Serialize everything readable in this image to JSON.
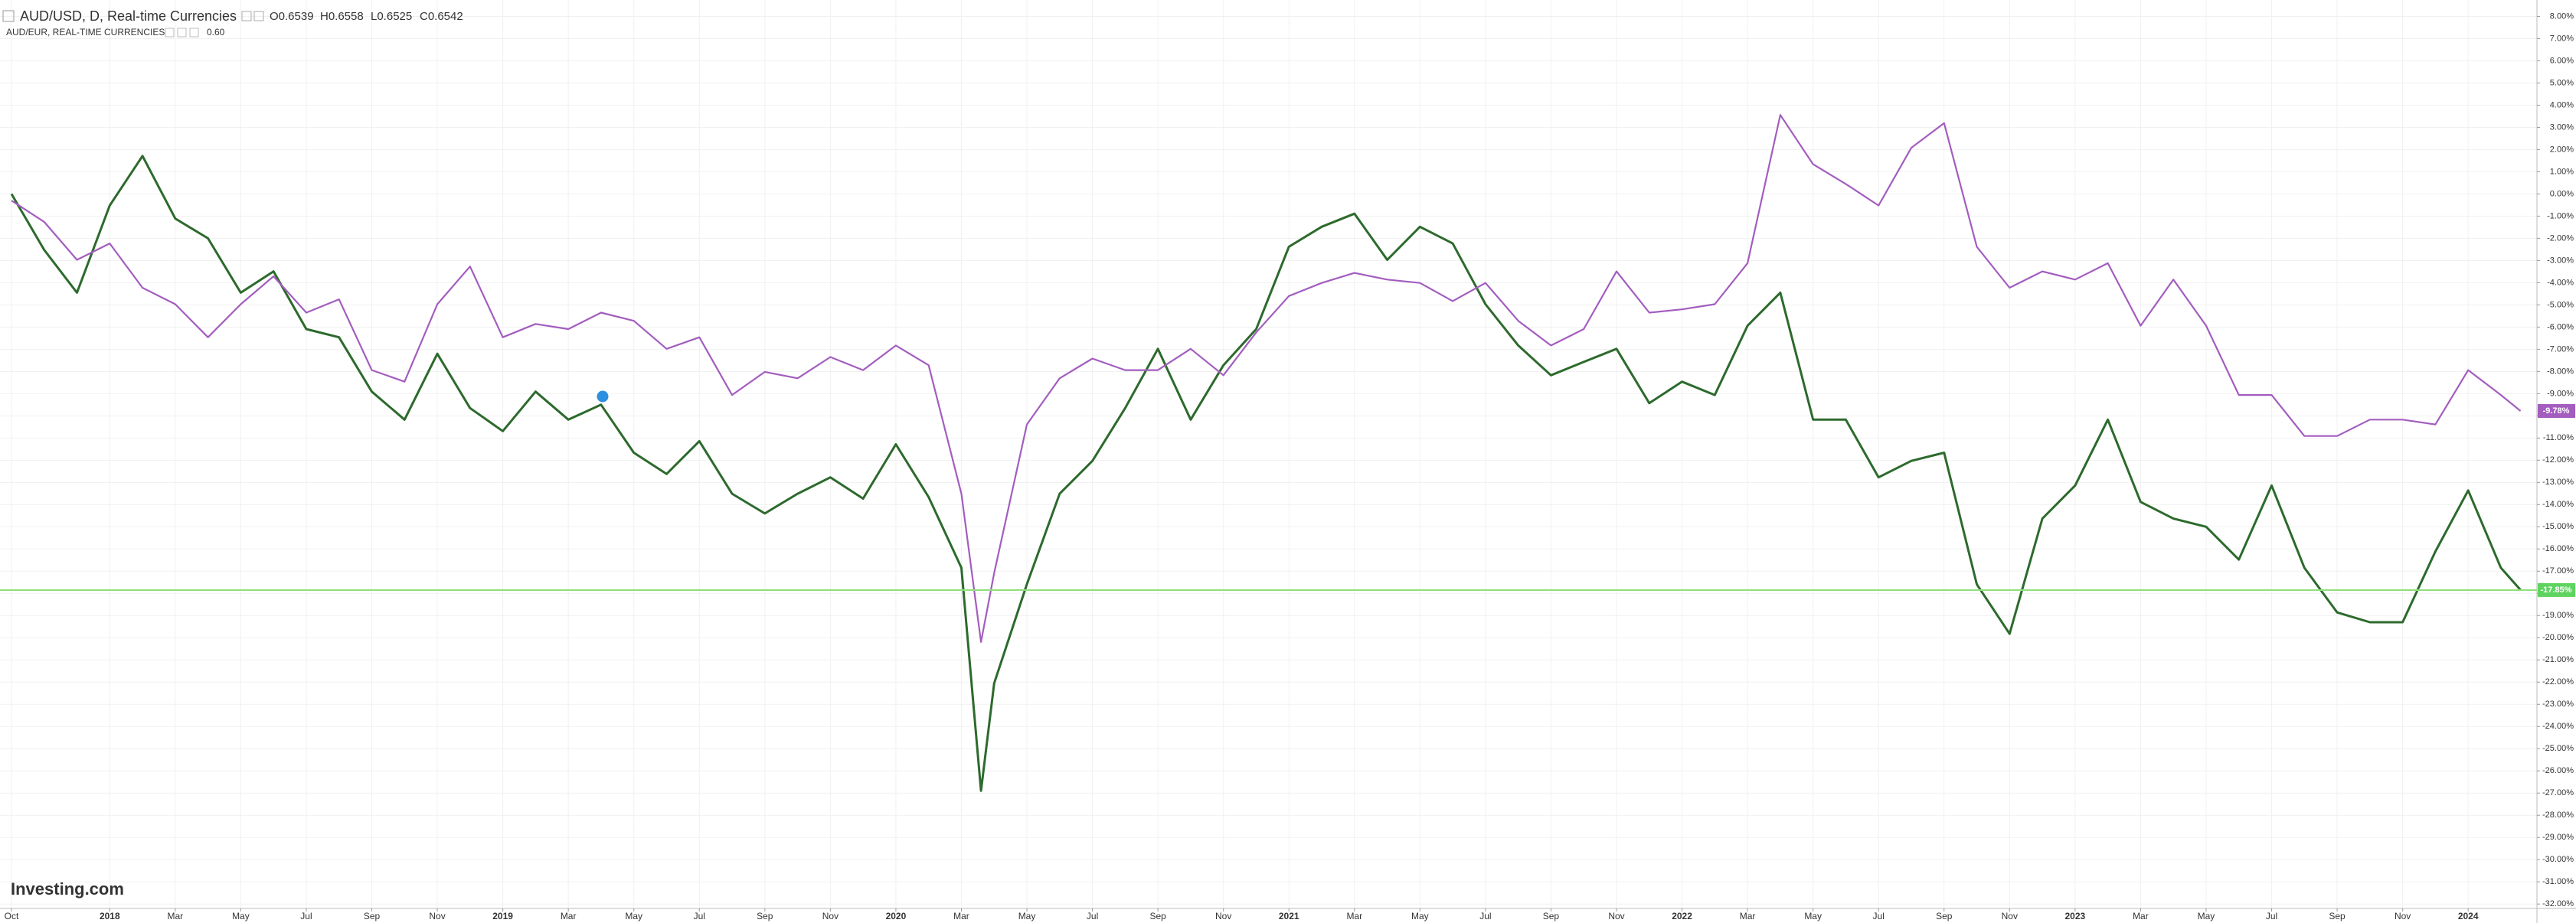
{
  "chart_data": {
    "type": "line",
    "title": "AUD/USD, D, Real-time Currencies",
    "ohlc": [
      "O0.6539",
      "H0.6558",
      "L0.6525",
      "C0.6542"
    ],
    "logo": "Investing.com",
    "x": [
      0,
      1,
      2,
      3,
      4,
      5,
      6,
      7,
      8,
      9,
      10,
      11,
      12,
      13,
      14,
      15,
      16,
      17,
      18,
      19,
      20,
      21,
      22,
      23,
      24,
      25,
      26,
      27,
      28,
      29,
      29.6,
      30,
      31,
      32,
      33,
      34,
      35,
      36,
      37,
      38,
      39,
      40,
      41,
      42,
      43,
      44,
      45,
      46,
      47,
      48,
      49,
      50,
      51,
      52,
      53,
      54,
      55,
      56,
      57,
      58,
      59,
      60,
      61,
      62,
      63,
      64,
      65,
      66,
      67,
      68,
      69,
      70,
      71,
      72,
      73,
      74,
      75,
      76,
      76.6
    ],
    "series": [
      {
        "name": "AUD/USD, D, Real-time Currencies",
        "color": "#2d6a2d",
        "last_label": "-17.85%",
        "values": [
          0,
          -2.52,
          -4.45,
          -0.52,
          1.71,
          -1.11,
          -2.0,
          -4.45,
          -3.49,
          -6.09,
          -6.46,
          -8.91,
          -10.17,
          -7.2,
          -9.65,
          -10.69,
          -8.91,
          -10.17,
          -9.5,
          -11.66,
          -12.62,
          -11.14,
          -13.51,
          -14.4,
          -13.51,
          -12.77,
          -13.73,
          -11.28,
          -13.66,
          -16.85,
          -26.9,
          -22.05,
          -17.59,
          -13.51,
          -12.03,
          -9.65,
          -6.98,
          -10.17,
          -7.72,
          -6.09,
          -2.38,
          -1.48,
          -0.89,
          -2.97,
          -1.48,
          -2.23,
          -4.97,
          -6.83,
          -8.17,
          -7.57,
          -6.98,
          -9.43,
          -8.46,
          -9.06,
          -5.94,
          -4.45,
          -10.17,
          -10.17,
          -12.77,
          -12.03,
          -11.66,
          -17.59,
          -19.82,
          -14.63,
          -13.14,
          -10.17,
          -13.88,
          -14.63,
          -15.0,
          -16.48,
          -13.14,
          -16.85,
          -18.86,
          -19.3,
          -19.3,
          -16.11,
          -13.36,
          -16.85,
          -17.85
        ]
      },
      {
        "name": "AUD/EUR, REAL-TIME CURRENCIES",
        "color": "#a35dbf",
        "legend_value": "0.60",
        "last_label": "-9.78%",
        "values": [
          -0.3,
          -1.26,
          -2.97,
          -2.23,
          -4.23,
          -4.97,
          -6.46,
          -4.97,
          -3.71,
          -5.35,
          -4.75,
          -7.94,
          -8.46,
          -4.97,
          -3.27,
          -6.46,
          -5.86,
          -6.09,
          -5.35,
          -5.72,
          -6.98,
          -6.46,
          -9.06,
          -8.02,
          -8.31,
          -7.35,
          -7.94,
          -6.83,
          -7.72,
          -13.51,
          -20.19,
          -17.08,
          -10.39,
          -8.31,
          -7.42,
          -7.94,
          -7.94,
          -6.98,
          -8.17,
          -6.24,
          -4.6,
          -4.01,
          -3.56,
          -3.86,
          -4.01,
          -4.83,
          -4.01,
          -5.72,
          -6.83,
          -6.09,
          -3.49,
          -5.35,
          -5.2,
          -4.97,
          -3.12,
          3.56,
          1.34,
          0.45,
          -0.52,
          2.08,
          3.19,
          -2.38,
          -4.23,
          -3.49,
          -3.86,
          -3.12,
          -5.94,
          -3.86,
          -5.94,
          -9.06,
          -9.06,
          -10.91,
          -10.91,
          -10.17,
          -10.17,
          -10.39,
          -7.94,
          -9.06,
          -9.78
        ]
      }
    ],
    "xlim": [
      -0.35,
      77.1
    ],
    "xticks": [
      {
        "value": 0,
        "label": "Oct"
      },
      {
        "value": 3,
        "label": "2018"
      },
      {
        "value": 5,
        "label": "Mar"
      },
      {
        "value": 7,
        "label": "May"
      },
      {
        "value": 9,
        "label": "Jul"
      },
      {
        "value": 11,
        "label": "Sep"
      },
      {
        "value": 13,
        "label": "Nov"
      },
      {
        "value": 15,
        "label": "2019"
      },
      {
        "value": 17,
        "label": "Mar"
      },
      {
        "value": 19,
        "label": "May"
      },
      {
        "value": 21,
        "label": "Jul"
      },
      {
        "value": 23,
        "label": "Sep"
      },
      {
        "value": 25,
        "label": "Nov"
      },
      {
        "value": 27,
        "label": "2020"
      },
      {
        "value": 29,
        "label": "Mar"
      },
      {
        "value": 31,
        "label": "May"
      },
      {
        "value": 33,
        "label": "Jul"
      },
      {
        "value": 35,
        "label": "Sep"
      },
      {
        "value": 37,
        "label": "Nov"
      },
      {
        "value": 39,
        "label": "2021"
      },
      {
        "value": 41,
        "label": "Mar"
      },
      {
        "value": 43,
        "label": "May"
      },
      {
        "value": 45,
        "label": "Jul"
      },
      {
        "value": 47,
        "label": "Sep"
      },
      {
        "value": 49,
        "label": "Nov"
      },
      {
        "value": 51,
        "label": "2022"
      },
      {
        "value": 53,
        "label": "Mar"
      },
      {
        "value": 55,
        "label": "May"
      },
      {
        "value": 57,
        "label": "Jul"
      },
      {
        "value": 59,
        "label": "Sep"
      },
      {
        "value": 61,
        "label": "Nov"
      },
      {
        "value": 63,
        "label": "2023"
      },
      {
        "value": 65,
        "label": "Mar"
      },
      {
        "value": 67,
        "label": "May"
      },
      {
        "value": 69,
        "label": "Jul"
      },
      {
        "value": 71,
        "label": "Sep"
      },
      {
        "value": 73,
        "label": "Nov"
      },
      {
        "value": 75,
        "label": "2024"
      }
    ],
    "ylim": [
      -32.2,
      8.74
    ],
    "yticks": [
      {
        "value": 8,
        "label": "8.00%"
      },
      {
        "value": 7,
        "label": "7.00%"
      },
      {
        "value": 6,
        "label": "6.00%"
      },
      {
        "value": 5,
        "label": "5.00%"
      },
      {
        "value": 4,
        "label": "4.00%"
      },
      {
        "value": 3,
        "label": "3.00%"
      },
      {
        "value": 2,
        "label": "2.00%"
      },
      {
        "value": 1,
        "label": "1.00%"
      },
      {
        "value": 0,
        "label": "0.00%"
      },
      {
        "value": -1,
        "label": "-1.00%"
      },
      {
        "value": -2,
        "label": "-2.00%"
      },
      {
        "value": -3,
        "label": "-3.00%"
      },
      {
        "value": -4,
        "label": "-4.00%"
      },
      {
        "value": -5,
        "label": "-5.00%"
      },
      {
        "value": -6,
        "label": "-6.00%"
      },
      {
        "value": -7,
        "label": "-7.00%"
      },
      {
        "value": -8,
        "label": "-8.00%"
      },
      {
        "value": -9,
        "label": "-9.00%"
      },
      {
        "value": -10,
        "label": "-10.00%"
      },
      {
        "value": -11,
        "label": "-11.00%"
      },
      {
        "value": -12,
        "label": "-12.00%"
      },
      {
        "value": -13,
        "label": "-13.00%"
      },
      {
        "value": -14,
        "label": "-14.00%"
      },
      {
        "value": -15,
        "label": "-15.00%"
      },
      {
        "value": -16,
        "label": "-16.00%"
      },
      {
        "value": -17,
        "label": "-17.00%"
      },
      {
        "value": -18,
        "label": "-18.00%"
      },
      {
        "value": -19,
        "label": "-19.00%"
      },
      {
        "value": -20,
        "label": "-20.00%"
      },
      {
        "value": -21,
        "label": "-21.00%"
      },
      {
        "value": -22,
        "label": "-22.00%"
      },
      {
        "value": -23,
        "label": "-23.00%"
      },
      {
        "value": -24,
        "label": "-24.00%"
      },
      {
        "value": -25,
        "label": "-25.00%"
      },
      {
        "value": -26,
        "label": "-26.00%"
      },
      {
        "value": -27,
        "label": "-27.00%"
      },
      {
        "value": -28,
        "label": "-28.00%"
      },
      {
        "value": -29,
        "label": "-29.00%"
      },
      {
        "value": -30,
        "label": "-30.00%"
      },
      {
        "value": -31,
        "label": "-31.00%"
      },
      {
        "value": -32,
        "label": "-32.00%"
      }
    ],
    "grid": true
  }
}
